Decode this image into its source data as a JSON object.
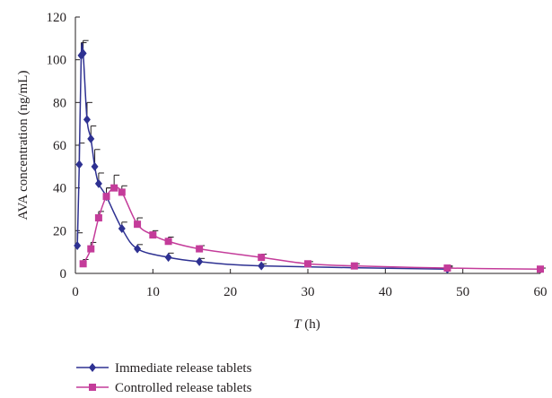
{
  "chart_data": {
    "type": "line",
    "xlabel_italic": "T",
    "xlabel_unit": " (h)",
    "ylabel": "AVA concentration (ng/mL)",
    "xlim": [
      0,
      60
    ],
    "ylim": [
      0,
      120
    ],
    "x_ticks": [
      0,
      10,
      20,
      30,
      40,
      50,
      60
    ],
    "y_ticks": [
      0,
      20,
      40,
      60,
      80,
      100,
      120
    ],
    "grid": false,
    "legend_position": "bottom",
    "series": [
      {
        "name": "Immediate release tablets",
        "color": "#2e3192",
        "marker": "diamond",
        "x": [
          0.25,
          0.5,
          0.75,
          1,
          1.5,
          2,
          2.5,
          3,
          4,
          6,
          8,
          12,
          16,
          24,
          48
        ],
        "y": [
          13,
          51,
          102,
          103,
          72,
          63,
          50,
          42,
          36,
          21,
          11.5,
          7.5,
          5.5,
          3.5,
          2
        ],
        "err": [
          6,
          10,
          6,
          6,
          8,
          6,
          8,
          5,
          4,
          3,
          2,
          2,
          1.5,
          1,
          1
        ]
      },
      {
        "name": "Controlled release tablets",
        "color": "#c43c9a",
        "marker": "square",
        "x": [
          1,
          2,
          3,
          4,
          5,
          6,
          8,
          10,
          12,
          16,
          24,
          30,
          36,
          48,
          60
        ],
        "y": [
          4.5,
          11.5,
          26,
          36,
          40,
          38,
          23,
          18,
          15,
          11.5,
          7.5,
          4.5,
          3.5,
          2.5,
          2
        ],
        "err": [
          2,
          3,
          3,
          4,
          6,
          3,
          3,
          2,
          2,
          1.5,
          1.5,
          1,
          1,
          1,
          0.5
        ]
      }
    ]
  }
}
